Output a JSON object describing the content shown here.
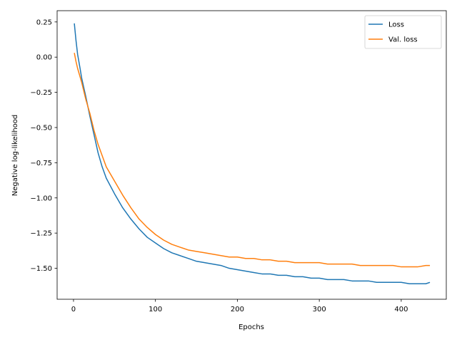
{
  "chart_data": {
    "type": "line",
    "xlabel": "Epochs",
    "ylabel": "Negative log-likelihood",
    "xlim": [
      -20,
      455
    ],
    "ylim": [
      -1.72,
      0.33
    ],
    "xticks": [
      0,
      100,
      200,
      300,
      400
    ],
    "yticks": [
      0.25,
      0.0,
      -0.25,
      -0.5,
      -0.75,
      -1.0,
      -1.25,
      -1.5
    ],
    "ytick_labels": [
      "0.25",
      "0.00",
      "−0.25",
      "−0.50",
      "−0.75",
      "−1.00",
      "−1.25",
      "−1.50"
    ],
    "xtick_labels": [
      "0",
      "100",
      "200",
      "300",
      "400"
    ],
    "grid": false,
    "legend_position": "top-right",
    "series": [
      {
        "name": "Loss",
        "color": "#1f77b4",
        "x": [
          1,
          3,
          5,
          8,
          10,
          15,
          20,
          25,
          30,
          35,
          40,
          50,
          60,
          70,
          80,
          90,
          100,
          110,
          120,
          130,
          140,
          150,
          160,
          170,
          180,
          190,
          200,
          210,
          220,
          230,
          240,
          250,
          260,
          270,
          280,
          290,
          300,
          310,
          320,
          330,
          340,
          350,
          360,
          370,
          380,
          390,
          400,
          410,
          420,
          430,
          435
        ],
        "y": [
          0.24,
          0.12,
          0.02,
          -0.08,
          -0.15,
          -0.28,
          -0.42,
          -0.55,
          -0.68,
          -0.78,
          -0.86,
          -0.97,
          -1.07,
          -1.15,
          -1.22,
          -1.28,
          -1.32,
          -1.36,
          -1.39,
          -1.41,
          -1.43,
          -1.45,
          -1.46,
          -1.47,
          -1.48,
          -1.5,
          -1.51,
          -1.52,
          -1.53,
          -1.54,
          -1.54,
          -1.55,
          -1.55,
          -1.56,
          -1.56,
          -1.57,
          -1.57,
          -1.58,
          -1.58,
          -1.58,
          -1.59,
          -1.59,
          -1.59,
          -1.6,
          -1.6,
          -1.6,
          -1.6,
          -1.61,
          -1.61,
          -1.61,
          -1.6
        ]
      },
      {
        "name": "Val. loss",
        "color": "#ff7f0e",
        "x": [
          1,
          3,
          5,
          8,
          10,
          15,
          20,
          25,
          30,
          35,
          40,
          50,
          60,
          70,
          80,
          90,
          100,
          110,
          120,
          130,
          140,
          150,
          160,
          170,
          180,
          190,
          200,
          210,
          220,
          230,
          240,
          250,
          260,
          270,
          280,
          290,
          300,
          310,
          320,
          330,
          340,
          350,
          360,
          370,
          380,
          390,
          400,
          410,
          420,
          430,
          435
        ],
        "y": [
          0.03,
          -0.03,
          -0.08,
          -0.14,
          -0.18,
          -0.3,
          -0.4,
          -0.52,
          -0.62,
          -0.7,
          -0.78,
          -0.88,
          -0.98,
          -1.07,
          -1.15,
          -1.21,
          -1.26,
          -1.3,
          -1.33,
          -1.35,
          -1.37,
          -1.38,
          -1.39,
          -1.4,
          -1.41,
          -1.42,
          -1.42,
          -1.43,
          -1.43,
          -1.44,
          -1.44,
          -1.45,
          -1.45,
          -1.46,
          -1.46,
          -1.46,
          -1.46,
          -1.47,
          -1.47,
          -1.47,
          -1.47,
          -1.48,
          -1.48,
          -1.48,
          -1.48,
          -1.48,
          -1.49,
          -1.49,
          -1.49,
          -1.48,
          -1.48
        ]
      }
    ]
  }
}
